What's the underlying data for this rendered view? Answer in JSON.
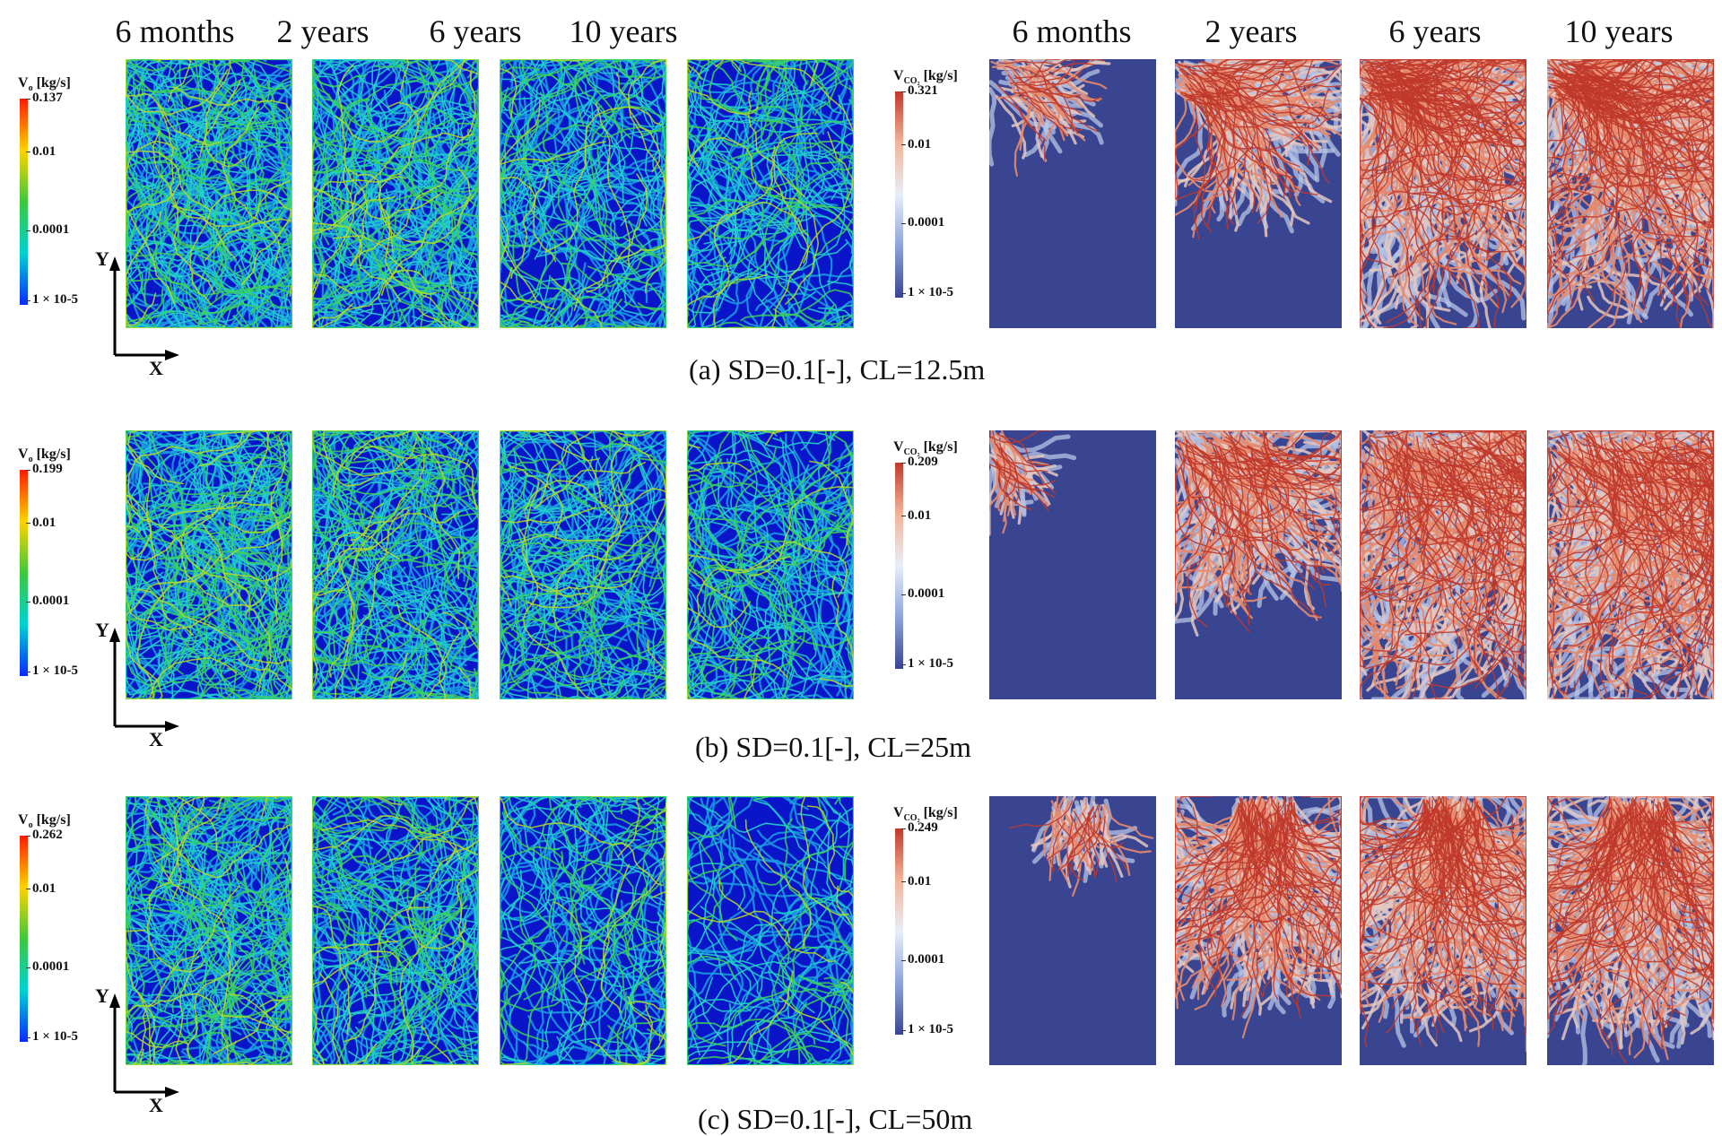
{
  "column_headers": {
    "left": [
      "6 months",
      "2 years",
      "6 years",
      "10 years"
    ],
    "right": [
      "6 months",
      "2 years",
      "6 years",
      "10 years"
    ]
  },
  "axis": {
    "x": "X",
    "y": "Y"
  },
  "rows": [
    {
      "caption": "(a) SD=0.1[-], CL=12.5m",
      "oil_colorbar": {
        "var": "V",
        "sub": "o",
        "unit": "[kg/s]",
        "ticks": [
          "0.137",
          "0.01",
          "0.0001",
          "1 × 10-5"
        ]
      },
      "co2_colorbar": {
        "var": "V",
        "sub": "CO₂",
        "unit": "[kg/s]",
        "ticks": [
          "0.321",
          "0.01",
          "0.0001",
          "1 × 10-5"
        ]
      }
    },
    {
      "caption": "(b) SD=0.1[-], CL=25m",
      "oil_colorbar": {
        "var": "V",
        "sub": "o",
        "unit": "[kg/s]",
        "ticks": [
          "0.199",
          "0.01",
          "0.0001",
          "1 × 10-5"
        ]
      },
      "co2_colorbar": {
        "var": "V",
        "sub": "CO₂",
        "unit": "[kg/s]",
        "ticks": [
          "0.209",
          "0.01",
          "0.0001",
          "1 × 10-5"
        ]
      }
    },
    {
      "caption": "(c) SD=0.1[-], CL=50m",
      "oil_colorbar": {
        "var": "V",
        "sub": "o",
        "unit": "[kg/s]",
        "ticks": [
          "0.262",
          "0.01",
          "0.0001",
          "1 × 10-5"
        ]
      },
      "co2_colorbar": {
        "var": "V",
        "sub": "CO₂",
        "unit": "[kg/s]",
        "ticks": [
          "0.249",
          "0.01",
          "0.0001",
          "1 × 10-5"
        ]
      }
    }
  ],
  "colors": {
    "oil_background": "#0a14c8",
    "co2_background": "#3a4591",
    "oil_scale": [
      "#ff1a00",
      "#ffd200",
      "#3cc83c",
      "#00d2d2",
      "#0a28ff"
    ],
    "co2_scale": [
      "#c0392b",
      "#f2b49a",
      "#e8eef8",
      "#8ea3db",
      "#3a4591"
    ]
  }
}
